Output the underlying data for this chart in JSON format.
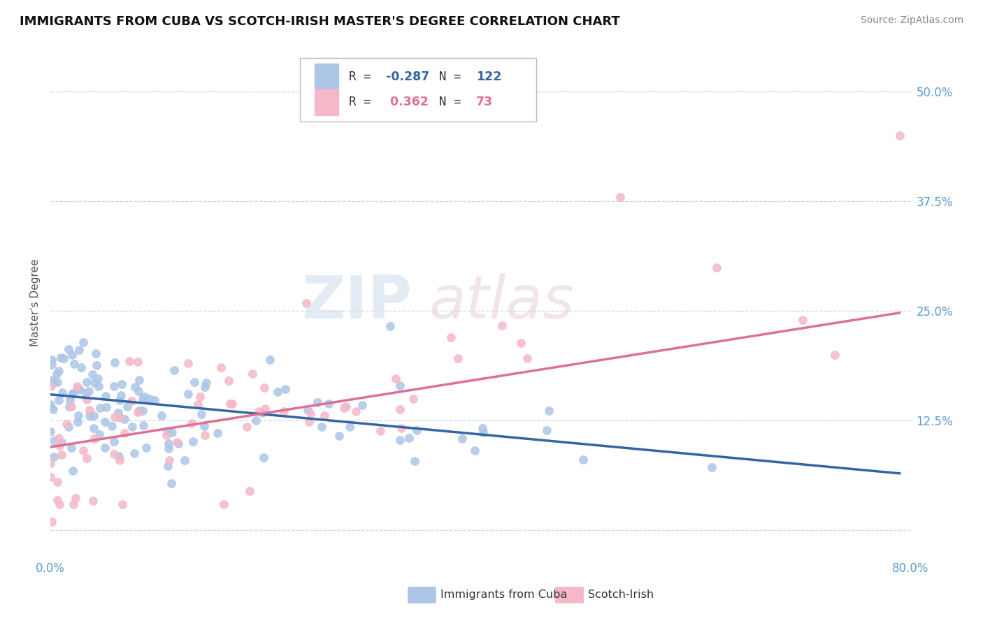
{
  "title": "IMMIGRANTS FROM CUBA VS SCOTCH-IRISH MASTER'S DEGREE CORRELATION CHART",
  "source": "Source: ZipAtlas.com",
  "xlabel_blue": "Immigrants from Cuba",
  "xlabel_pink": "Scotch-Irish",
  "ylabel": "Master's Degree",
  "legend_blue_R": "-0.287",
  "legend_blue_N": "122",
  "legend_pink_R": "0.362",
  "legend_pink_N": "73",
  "blue_color": "#adc6e8",
  "pink_color": "#f5b8c8",
  "blue_line_color": "#3465a4",
  "pink_line_color": "#e07090",
  "xlim": [
    0.0,
    0.8
  ],
  "ylim": [
    -0.03,
    0.55
  ],
  "xticks": [
    0.0,
    0.1,
    0.2,
    0.3,
    0.4,
    0.5,
    0.6,
    0.7,
    0.8
  ],
  "yticks": [
    0.0,
    0.125,
    0.25,
    0.375,
    0.5
  ],
  "ytick_labels": [
    "",
    "12.5%",
    "25.0%",
    "37.5%",
    "50.0%"
  ],
  "watermark": "ZIPatlas",
  "blue_line_x": [
    0.0,
    0.79
  ],
  "blue_line_y": [
    0.155,
    0.065
  ],
  "pink_line_x": [
    0.0,
    0.79
  ],
  "pink_line_y": [
    0.095,
    0.248
  ]
}
